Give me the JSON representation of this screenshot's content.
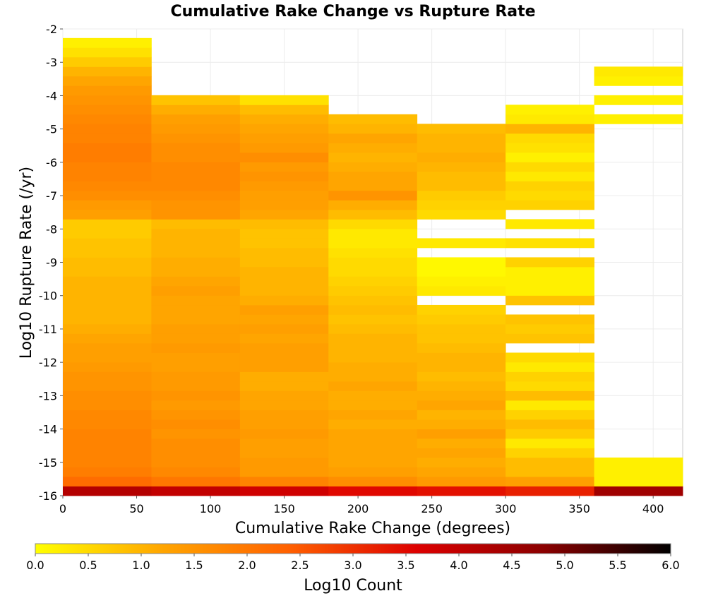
{
  "chart_data": {
    "type": "heatmap",
    "title": "Cumulative Rake Change vs Rupture Rate",
    "xlabel": "Cumulative Rake Change (degrees)",
    "ylabel": "Log10 Rupture Rate (/yr)",
    "colorbar_label": "Log10 Count",
    "xlim": [
      0,
      420
    ],
    "ylim": [
      -16,
      -2
    ],
    "x_ticks": [
      0,
      50,
      100,
      150,
      200,
      250,
      300,
      350,
      400
    ],
    "y_ticks": [
      -2,
      -3,
      -4,
      -5,
      -6,
      -7,
      -8,
      -9,
      -10,
      -11,
      -12,
      -13,
      -14,
      -15,
      -16
    ],
    "colorbar_range": [
      0.0,
      6.0
    ],
    "colorbar_ticks": [
      "0.0",
      "0.5",
      "1.0",
      "1.5",
      "2.0",
      "2.5",
      "3.0",
      "3.5",
      "4.0",
      "4.5",
      "5.0",
      "5.5",
      "6.0"
    ],
    "colormap": [
      "#ffff00",
      "#ffa500",
      "#ff6000",
      "#dd0000",
      "#8b0000",
      "#000000"
    ],
    "x_bin_edges": [
      0,
      60,
      120,
      180,
      240,
      300,
      360,
      420
    ],
    "y_bin_start": -16,
    "y_bin_width": 0.286,
    "column_values": [
      [
        4.2,
        2.2,
        1.9,
        1.8,
        1.8,
        1.8,
        1.8,
        1.7,
        1.7,
        1.6,
        1.6,
        1.5,
        1.5,
        1.4,
        1.3,
        1.3,
        1.2,
        1.1,
        1.0,
        1.0,
        1.0,
        1.0,
        1.0,
        0.9,
        0.9,
        0.8,
        0.8,
        0.7,
        0.7,
        1.3,
        1.4,
        1.6,
        1.7,
        1.8,
        1.8,
        1.9,
        1.9,
        1.8,
        1.8,
        1.7,
        1.6,
        1.5,
        1.4,
        1.2,
        1.0,
        0.7,
        0.4,
        0.2,
        null
      ],
      [
        4.0,
        2.0,
        1.7,
        1.6,
        1.6,
        1.6,
        1.5,
        1.6,
        1.5,
        1.4,
        1.5,
        1.4,
        1.4,
        1.3,
        1.3,
        1.4,
        1.3,
        1.3,
        1.2,
        1.2,
        1.2,
        1.3,
        1.2,
        1.1,
        1.1,
        1.0,
        1.0,
        1.0,
        0.9,
        1.5,
        1.5,
        1.6,
        1.7,
        1.7,
        1.7,
        1.6,
        1.6,
        1.5,
        1.4,
        1.3,
        1.1,
        0.8,
        null,
        null,
        null,
        null,
        null,
        null,
        null
      ],
      [
        3.8,
        1.8,
        1.4,
        1.4,
        1.3,
        1.3,
        1.4,
        1.3,
        1.3,
        1.2,
        1.2,
        1.1,
        1.1,
        1.3,
        1.3,
        1.3,
        1.2,
        1.3,
        1.2,
        1.3,
        1.1,
        1.0,
        1.0,
        1.0,
        0.9,
        0.9,
        0.8,
        0.8,
        0.9,
        1.2,
        1.3,
        1.3,
        1.4,
        1.5,
        1.4,
        1.6,
        1.4,
        1.3,
        1.2,
        1.1,
        0.9,
        0.4,
        null,
        null,
        null,
        null,
        null,
        null,
        null
      ],
      [
        3.5,
        1.6,
        1.3,
        1.2,
        1.2,
        1.2,
        1.2,
        1.1,
        1.2,
        1.1,
        1.1,
        1.2,
        1.1,
        1.1,
        1.0,
        1.0,
        1.0,
        0.9,
        0.8,
        0.9,
        0.8,
        0.7,
        0.6,
        0.5,
        0.5,
        0.4,
        0.3,
        0.3,
        0.5,
        0.9,
        1.1,
        1.5,
        1.2,
        1.2,
        1.1,
        1.0,
        1.1,
        1.2,
        1.0,
        0.9,
        null,
        null,
        null,
        null,
        null,
        null,
        null,
        null,
        null
      ],
      [
        3.4,
        1.4,
        1.2,
        1.1,
        1.2,
        1.1,
        1.3,
        1.1,
        1.0,
        1.2,
        1.1,
        1.0,
        0.9,
        1.0,
        1.0,
        0.9,
        0.8,
        0.8,
        0.7,
        0.6,
        null,
        0.3,
        0.2,
        0.1,
        0.1,
        null,
        0.3,
        null,
        null,
        0.5,
        0.6,
        0.7,
        0.9,
        0.9,
        1.0,
        1.1,
        1.0,
        1.0,
        0.9,
        null,
        null,
        null,
        null,
        null,
        null,
        null,
        null,
        null,
        null
      ],
      [
        3.2,
        1.3,
        0.9,
        0.9,
        0.6,
        0.3,
        0.7,
        0.9,
        0.6,
        0.3,
        0.9,
        0.5,
        0.6,
        0.3,
        0.5,
        null,
        0.8,
        0.7,
        0.8,
        null,
        0.8,
        0.2,
        0.2,
        0.2,
        0.6,
        null,
        0.4,
        null,
        0.3,
        null,
        0.6,
        0.5,
        0.6,
        0.3,
        0.5,
        0.2,
        0.4,
        0.5,
        1.0,
        0.3,
        0.2,
        null,
        null,
        null,
        null,
        null,
        null,
        null,
        null
      ],
      [
        4.5,
        0.2,
        0.2,
        0.2,
        null,
        null,
        null,
        null,
        null,
        null,
        null,
        null,
        null,
        null,
        null,
        null,
        null,
        null,
        null,
        null,
        null,
        null,
        null,
        null,
        null,
        null,
        null,
        null,
        null,
        null,
        null,
        null,
        null,
        null,
        null,
        null,
        null,
        null,
        null,
        0.2,
        null,
        0.2,
        null,
        0.2,
        0.3,
        null,
        null,
        null,
        null
      ]
    ]
  }
}
